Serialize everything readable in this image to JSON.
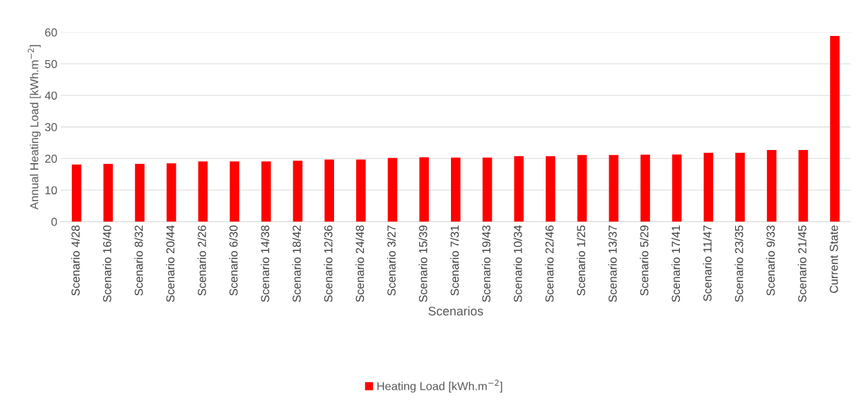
{
  "chart_data": {
    "type": "bar",
    "xlabel": "Scenarios",
    "ylabel": "Annual Heating Load [kWh.m$^{−2}$]",
    "categories": [
      "Scenario 4/28",
      "Scenario 16/40",
      "Scenario 8/32",
      "Scenario 20/44",
      "Scenario 2/26",
      "Scenario 6/30",
      "Scenario 14/38",
      "Scenario 18/42",
      "Scenario 12/36",
      "Scenario 24/48",
      "Scenario 3/27",
      "Scenario 15/39",
      "Scenario 7/31",
      "Scenario 19/43",
      "Scenario 10/34",
      "Scenario 22/46",
      "Scenario 1/25",
      "Scenario 13/37",
      "Scenario 5/29",
      "Scenario 17/41",
      "Scenario 11/47",
      "Scenario 23/35",
      "Scenario 9/33",
      "Scenario 21/45",
      "Current State"
    ],
    "series": [
      {
        "name": "Heating Load [kWh.m$^{−2}$]",
        "color": "#ff0000",
        "values": [
          18.1,
          18.3,
          18.3,
          18.5,
          19.1,
          19.1,
          19.1,
          19.3,
          19.7,
          19.7,
          20.2,
          20.4,
          20.3,
          20.3,
          20.7,
          20.7,
          21.1,
          21.1,
          21.2,
          21.3,
          21.8,
          21.8,
          22.7,
          22.7,
          58.8
        ]
      }
    ],
    "ylim": [
      0,
      60
    ],
    "yticks": [
      0,
      10,
      20,
      30,
      40,
      50,
      60
    ],
    "grid": "y",
    "legend": "bottom"
  }
}
